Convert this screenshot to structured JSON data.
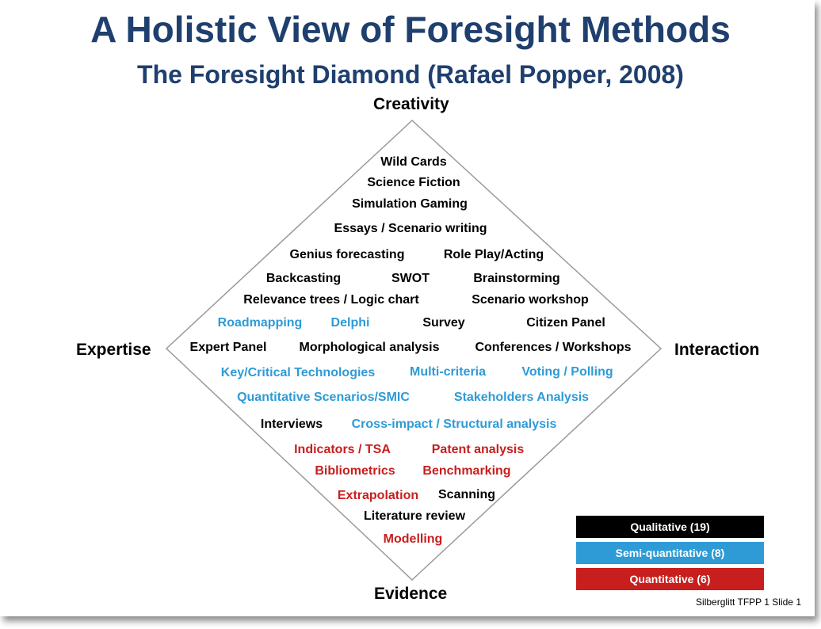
{
  "title": "A Holistic View of Foresight Methods",
  "subtitle": "The Foresight Diamond (Rafael Popper, 2008)",
  "corners": {
    "top": "Creativity",
    "left": "Expertise",
    "right": "Interaction",
    "bottom": "Evidence"
  },
  "colors": {
    "title": "#1f3f6e",
    "qualitative": "#000000",
    "semi_quantitative": "#2e9bd6",
    "quantitative": "#c81e1e"
  },
  "methods": [
    {
      "label": "Wild Cards",
      "type": "qualitative"
    },
    {
      "label": "Science Fiction",
      "type": "qualitative"
    },
    {
      "label": "Simulation Gaming",
      "type": "qualitative"
    },
    {
      "label": "Essays / Scenario writing",
      "type": "qualitative"
    },
    {
      "label": "Genius forecasting",
      "type": "qualitative"
    },
    {
      "label": "Role Play/Acting",
      "type": "qualitative"
    },
    {
      "label": "Backcasting",
      "type": "qualitative"
    },
    {
      "label": "SWOT",
      "type": "qualitative"
    },
    {
      "label": "Brainstorming",
      "type": "qualitative"
    },
    {
      "label": "Relevance trees / Logic chart",
      "type": "qualitative"
    },
    {
      "label": "Scenario workshop",
      "type": "qualitative"
    },
    {
      "label": "Roadmapping",
      "type": "semi-quantitative"
    },
    {
      "label": "Delphi",
      "type": "semi-quantitative"
    },
    {
      "label": "Survey",
      "type": "qualitative"
    },
    {
      "label": "Citizen Panel",
      "type": "qualitative"
    },
    {
      "label": "Expert Panel",
      "type": "qualitative"
    },
    {
      "label": "Morphological analysis",
      "type": "qualitative"
    },
    {
      "label": "Conferences / Workshops",
      "type": "qualitative"
    },
    {
      "label": "Key/Critical Technologies",
      "type": "semi-quantitative"
    },
    {
      "label": "Multi-criteria",
      "type": "semi-quantitative"
    },
    {
      "label": "Voting / Polling",
      "type": "semi-quantitative"
    },
    {
      "label": "Quantitative Scenarios/SMIC",
      "type": "semi-quantitative"
    },
    {
      "label": "Stakeholders Analysis",
      "type": "semi-quantitative"
    },
    {
      "label": "Interviews",
      "type": "qualitative"
    },
    {
      "label": "Cross-impact / Structural analysis",
      "type": "semi-quantitative"
    },
    {
      "label": "Indicators / TSA",
      "type": "quantitative"
    },
    {
      "label": "Patent analysis",
      "type": "quantitative"
    },
    {
      "label": "Bibliometrics",
      "type": "quantitative"
    },
    {
      "label": "Benchmarking",
      "type": "quantitative"
    },
    {
      "label": "Extrapolation",
      "type": "quantitative"
    },
    {
      "label": "Scanning",
      "type": "qualitative"
    },
    {
      "label": "Literature review",
      "type": "qualitative"
    },
    {
      "label": "Modelling",
      "type": "quantitative"
    }
  ],
  "legend": [
    {
      "label": "Qualitative (19)",
      "color": "#000000"
    },
    {
      "label": "Semi-quantitative (8)",
      "color": "#2e9bd6"
    },
    {
      "label": "Quantitative (6)",
      "color": "#c81e1e"
    }
  ],
  "footer": "Silberglitt TFPP 1 Slide 1"
}
